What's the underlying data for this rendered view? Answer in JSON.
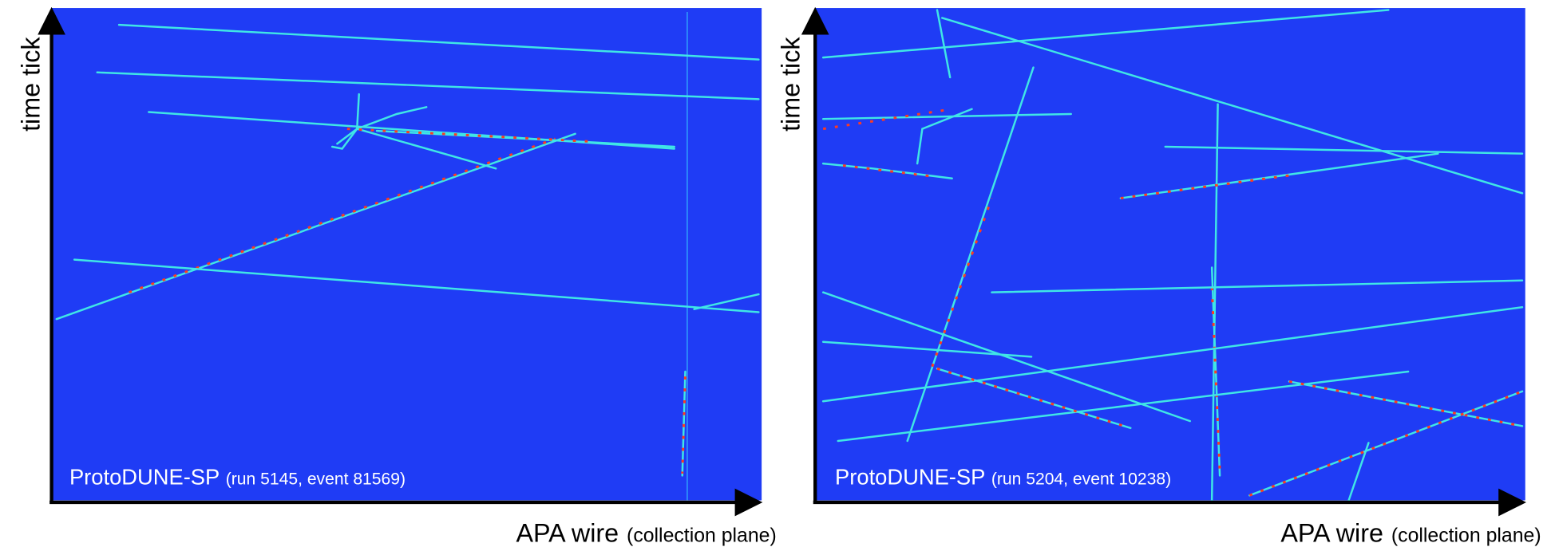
{
  "panels": [
    {
      "y_axis_label": "time tick",
      "x_axis_label": "APA wire",
      "x_axis_note": "(collection plane)",
      "detector": "ProtoDUNE-SP",
      "event_info": "(run 5145, event 81569)"
    },
    {
      "y_axis_label": "time tick",
      "x_axis_label": "APA wire",
      "x_axis_note": "(collection plane)",
      "detector": "ProtoDUNE-SP",
      "event_info": "(run 5204, event 10238)"
    }
  ]
}
